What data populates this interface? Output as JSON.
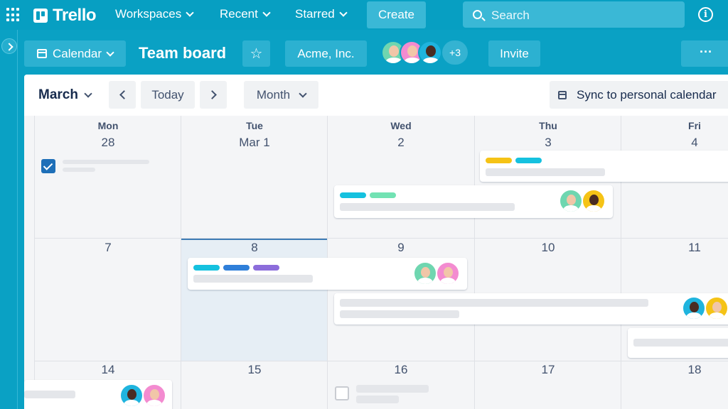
{
  "nav": {
    "logo_text": "Trello",
    "workspaces": "Workspaces",
    "recent": "Recent",
    "starred": "Starred",
    "create": "Create",
    "search_placeholder": "Search"
  },
  "board": {
    "view": "Calendar",
    "title": "Team board",
    "workspace": "Acme, Inc.",
    "member_overflow": "+3",
    "invite": "Invite",
    "more": "···"
  },
  "calendar": {
    "month": "March",
    "today": "Today",
    "range": "Month",
    "sync": "Sync to personal calendar",
    "weekdays": [
      "Mon",
      "Tue",
      "Wed",
      "Thu",
      "Fri"
    ],
    "weeks": [
      [
        "28",
        "Mar 1",
        "2",
        "3",
        "4"
      ],
      [
        "7",
        "8",
        "9",
        "10",
        "11"
      ],
      [
        "14",
        "15",
        "16",
        "17",
        "18"
      ]
    ]
  },
  "colors": {
    "brand": "#079fc2",
    "label_yellow": "#f5c316",
    "label_cyan": "#15c1df",
    "label_green": "#72e2b3",
    "label_blue": "#2f7fd9",
    "label_purple": "#8c6ddb",
    "check_blue": "#1e6fb8"
  }
}
